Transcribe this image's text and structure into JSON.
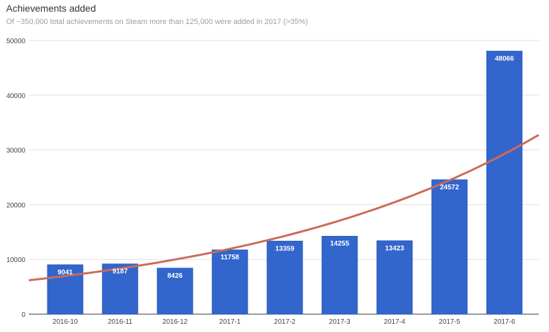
{
  "chart_data": {
    "type": "bar",
    "title": "Achievements added",
    "subtitle": "Of ~350,000 total achievements on Steam more than 125,000 were added in 2017 (>35%)",
    "categories": [
      "2016-10",
      "2016-11",
      "2016-12",
      "2017-1",
      "2017-2",
      "2017-3",
      "2017-4",
      "2017-5",
      "2017-6"
    ],
    "values": [
      9041,
      9187,
      8426,
      11758,
      13359,
      14255,
      13423,
      24572,
      48066
    ],
    "ylim": [
      0,
      50000
    ],
    "yticks": [
      0,
      10000,
      20000,
      30000,
      40000,
      50000
    ],
    "grid": true,
    "bar_color": "#3366cc",
    "trendline": {
      "type": "exponential",
      "color": "#cc6a5a"
    }
  }
}
